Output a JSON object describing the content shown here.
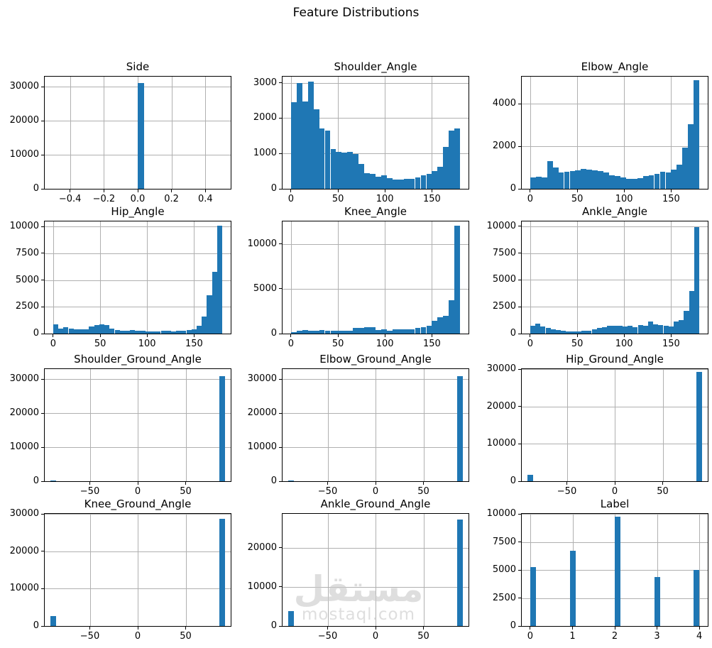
{
  "figure_title": "Feature Distributions",
  "watermark": {
    "arabic": "مستقل",
    "latin": "mostaql.com"
  },
  "colors": {
    "bar": "#1f77b4",
    "grid": "#b0b0b0",
    "spine": "#000000",
    "text": "#000000",
    "watermark": "#c9c9c9"
  },
  "chart_data": [
    {
      "type": "bar",
      "title": "Side",
      "xlim": [
        -0.55,
        0.55
      ],
      "ymax": 33000,
      "xticks": [
        {
          "v": -0.4,
          "label": "−0.4"
        },
        {
          "v": -0.2,
          "label": "−0.2"
        },
        {
          "v": 0.0,
          "label": "0.0"
        },
        {
          "v": 0.2,
          "label": "0.2"
        },
        {
          "v": 0.4,
          "label": "0.4"
        }
      ],
      "yticks": [
        {
          "v": 0,
          "label": "0"
        },
        {
          "v": 10000,
          "label": "10000"
        },
        {
          "v": 20000,
          "label": "20000"
        },
        {
          "v": 30000,
          "label": "30000"
        }
      ],
      "bars": [
        [
          0.0,
          0.037,
          31200
        ]
      ]
    },
    {
      "type": "bar",
      "title": "Shoulder_Angle",
      "xlim": [
        -9,
        189
      ],
      "ymax": 3170,
      "xticks": [
        {
          "v": 0,
          "label": "0"
        },
        {
          "v": 50,
          "label": "50"
        },
        {
          "v": 100,
          "label": "100"
        },
        {
          "v": 150,
          "label": "150"
        }
      ],
      "yticks": [
        {
          "v": 0,
          "label": "0"
        },
        {
          "v": 1000,
          "label": "1000"
        },
        {
          "v": 2000,
          "label": "2000"
        },
        {
          "v": 3000,
          "label": "3000"
        }
      ],
      "hist": {
        "start": 0,
        "bin_width": 6,
        "values": [
          2450,
          3000,
          2460,
          3040,
          2250,
          1700,
          1650,
          1120,
          1050,
          1020,
          1050,
          980,
          700,
          450,
          420,
          350,
          380,
          300,
          270,
          270,
          280,
          290,
          320,
          380,
          420,
          500,
          630,
          1180,
          1650,
          1700
        ]
      }
    },
    {
      "type": "bar",
      "title": "Elbow_Angle",
      "xlim": [
        -9,
        189
      ],
      "ymax": 5270,
      "xticks": [
        {
          "v": 0,
          "label": "0"
        },
        {
          "v": 50,
          "label": "50"
        },
        {
          "v": 100,
          "label": "100"
        },
        {
          "v": 150,
          "label": "150"
        }
      ],
      "yticks": [
        {
          "v": 0,
          "label": "0"
        },
        {
          "v": 2000,
          "label": "2000"
        },
        {
          "v": 4000,
          "label": "4000"
        }
      ],
      "hist": {
        "start": 0,
        "bin_width": 6,
        "values": [
          520,
          560,
          540,
          1300,
          1000,
          780,
          800,
          830,
          880,
          920,
          900,
          870,
          820,
          780,
          650,
          600,
          520,
          480,
          470,
          500,
          600,
          650,
          700,
          800,
          760,
          900,
          1150,
          1950,
          3050,
          5100
        ]
      }
    },
    {
      "type": "bar",
      "title": "Hip_Angle",
      "xlim": [
        -9,
        189
      ],
      "ymax": 10470,
      "xticks": [
        {
          "v": 0,
          "label": "0"
        },
        {
          "v": 50,
          "label": "50"
        },
        {
          "v": 100,
          "label": "100"
        },
        {
          "v": 150,
          "label": "150"
        }
      ],
      "yticks": [
        {
          "v": 0,
          "label": "0"
        },
        {
          "v": 2500,
          "label": "2500"
        },
        {
          "v": 5000,
          "label": "5000"
        },
        {
          "v": 7500,
          "label": "7500"
        },
        {
          "v": 10000,
          "label": "10000"
        }
      ],
      "hist": {
        "start": 0,
        "bin_width": 5.4545,
        "values": [
          850,
          500,
          600,
          450,
          400,
          400,
          420,
          650,
          800,
          850,
          800,
          500,
          350,
          250,
          300,
          350,
          250,
          240,
          230,
          200,
          210,
          250,
          250,
          210,
          250,
          300,
          350,
          400,
          700,
          1600,
          3600,
          5800,
          10050
        ]
      }
    },
    {
      "type": "bar",
      "title": "Knee_Angle",
      "xlim": [
        -9,
        189
      ],
      "ymax": 12500,
      "xticks": [
        {
          "v": 0,
          "label": "0"
        },
        {
          "v": 50,
          "label": "50"
        },
        {
          "v": 100,
          "label": "100"
        },
        {
          "v": 150,
          "label": "150"
        }
      ],
      "yticks": [
        {
          "v": 0,
          "label": "0"
        },
        {
          "v": 5000,
          "label": "5000"
        },
        {
          "v": 10000,
          "label": "10000"
        }
      ],
      "hist": {
        "start": 0,
        "bin_width": 6,
        "values": [
          200,
          350,
          400,
          350,
          350,
          400,
          350,
          300,
          300,
          300,
          350,
          600,
          650,
          700,
          700,
          400,
          450,
          350,
          450,
          450,
          450,
          500,
          600,
          700,
          900,
          1400,
          1800,
          2000,
          3700,
          12000
        ]
      }
    },
    {
      "type": "bar",
      "title": "Ankle_Angle",
      "xlim": [
        -9,
        189
      ],
      "ymax": 10450,
      "xticks": [
        {
          "v": 0,
          "label": "0"
        },
        {
          "v": 50,
          "label": "50"
        },
        {
          "v": 100,
          "label": "100"
        },
        {
          "v": 150,
          "label": "150"
        }
      ],
      "yticks": [
        {
          "v": 0,
          "label": "0"
        },
        {
          "v": 2500,
          "label": "2500"
        },
        {
          "v": 5000,
          "label": "5000"
        },
        {
          "v": 7500,
          "label": "7500"
        },
        {
          "v": 10000,
          "label": "10000"
        }
      ],
      "hist": {
        "start": 0,
        "bin_width": 5.4545,
        "values": [
          750,
          950,
          650,
          500,
          400,
          350,
          250,
          200,
          200,
          200,
          250,
          300,
          400,
          500,
          600,
          700,
          750,
          750,
          650,
          700,
          600,
          800,
          700,
          1100,
          850,
          800,
          700,
          650,
          1100,
          1250,
          2100,
          4000,
          9900
        ]
      }
    },
    {
      "type": "bar",
      "title": "Shoulder_Ground_Angle",
      "xlim": [
        -97,
        97
      ],
      "ymax": 33000,
      "xticks": [
        {
          "v": -50,
          "label": "−50"
        },
        {
          "v": 0,
          "label": "0"
        },
        {
          "v": 50,
          "label": "50"
        }
      ],
      "yticks": [
        {
          "v": 0,
          "label": "0"
        },
        {
          "v": 10000,
          "label": "10000"
        },
        {
          "v": 20000,
          "label": "20000"
        },
        {
          "v": 30000,
          "label": "30000"
        }
      ],
      "bars": [
        [
          -91,
          -85,
          300
        ],
        [
          85,
          91,
          31000
        ]
      ]
    },
    {
      "type": "bar",
      "title": "Elbow_Ground_Angle",
      "xlim": [
        -97,
        97
      ],
      "ymax": 33000,
      "xticks": [
        {
          "v": -50,
          "label": "−50"
        },
        {
          "v": 0,
          "label": "0"
        },
        {
          "v": 50,
          "label": "50"
        }
      ],
      "yticks": [
        {
          "v": 0,
          "label": "0"
        },
        {
          "v": 10000,
          "label": "10000"
        },
        {
          "v": 20000,
          "label": "20000"
        },
        {
          "v": 30000,
          "label": "30000"
        }
      ],
      "bars": [
        [
          -91,
          -85,
          300
        ],
        [
          85,
          91,
          31000
        ]
      ]
    },
    {
      "type": "bar",
      "title": "Hip_Ground_Angle",
      "xlim": [
        -97,
        97
      ],
      "ymax": 30000,
      "xticks": [
        {
          "v": -50,
          "label": "−50"
        },
        {
          "v": 0,
          "label": "0"
        },
        {
          "v": 50,
          "label": "50"
        }
      ],
      "yticks": [
        {
          "v": 0,
          "label": "0"
        },
        {
          "v": 10000,
          "label": "10000"
        },
        {
          "v": 20000,
          "label": "20000"
        },
        {
          "v": 30000,
          "label": "30000"
        }
      ],
      "bars": [
        [
          -91,
          -85,
          1700
        ],
        [
          85,
          91,
          29200
        ]
      ]
    },
    {
      "type": "bar",
      "title": "Knee_Ground_Angle",
      "xlim": [
        -97,
        97
      ],
      "ymax": 30000,
      "xticks": [
        {
          "v": -50,
          "label": "−50"
        },
        {
          "v": 0,
          "label": "0"
        },
        {
          "v": 50,
          "label": "50"
        }
      ],
      "yticks": [
        {
          "v": 0,
          "label": "0"
        },
        {
          "v": 10000,
          "label": "10000"
        },
        {
          "v": 20000,
          "label": "20000"
        },
        {
          "v": 30000,
          "label": "30000"
        }
      ],
      "bars": [
        [
          -91,
          -85,
          2600
        ],
        [
          85,
          91,
          28600
        ]
      ]
    },
    {
      "type": "bar",
      "title": "Ankle_Ground_Angle",
      "xlim": [
        -97,
        97
      ],
      "ymax": 28600,
      "xticks": [
        {
          "v": -50,
          "label": "−50"
        },
        {
          "v": 0,
          "label": "0"
        },
        {
          "v": 50,
          "label": "50"
        }
      ],
      "yticks": [
        {
          "v": 0,
          "label": "0"
        },
        {
          "v": 10000,
          "label": "10000"
        },
        {
          "v": 20000,
          "label": "20000"
        }
      ],
      "bars": [
        [
          -91,
          -85,
          3800
        ],
        [
          85,
          91,
          27100
        ]
      ]
    },
    {
      "type": "bar",
      "title": "Label",
      "xlim": [
        -0.2,
        4.2
      ],
      "ymax": 10000,
      "xticks": [
        {
          "v": 0,
          "label": "0"
        },
        {
          "v": 1,
          "label": "1"
        },
        {
          "v": 2,
          "label": "2"
        },
        {
          "v": 3,
          "label": "3"
        },
        {
          "v": 4,
          "label": "4"
        }
      ],
      "yticks": [
        {
          "v": 0,
          "label": "0"
        },
        {
          "v": 2500,
          "label": "2500"
        },
        {
          "v": 5000,
          "label": "5000"
        },
        {
          "v": 7500,
          "label": "7500"
        },
        {
          "v": 10000,
          "label": "10000"
        }
      ],
      "bars": [
        [
          0.0,
          0.133,
          5250
        ],
        [
          0.933,
          1.067,
          6700
        ],
        [
          2.0,
          2.133,
          9750
        ],
        [
          2.933,
          3.067,
          4400
        ],
        [
          3.867,
          4.0,
          5000
        ]
      ]
    }
  ]
}
